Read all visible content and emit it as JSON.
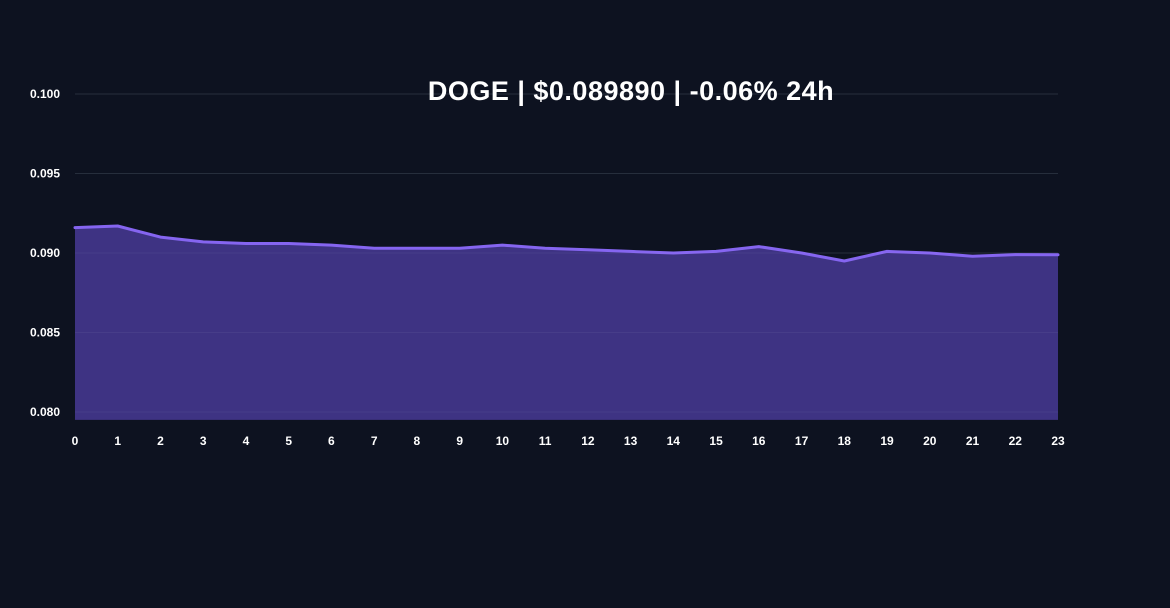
{
  "chart_data": {
    "type": "area",
    "title": "DOGE | $0.089890 | -0.06% 24h",
    "x": [
      0,
      1,
      2,
      3,
      4,
      5,
      6,
      7,
      8,
      9,
      10,
      11,
      12,
      13,
      14,
      15,
      16,
      17,
      18,
      19,
      20,
      21,
      22,
      23
    ],
    "values": [
      0.0916,
      0.0917,
      0.091,
      0.0907,
      0.0906,
      0.0906,
      0.0905,
      0.0903,
      0.0903,
      0.0903,
      0.0905,
      0.0903,
      0.0902,
      0.0901,
      0.09,
      0.0901,
      0.0904,
      0.09,
      0.0895,
      0.0901,
      0.09,
      0.0898,
      0.0899,
      0.08989
    ],
    "xlabel": "",
    "ylabel": "",
    "yticks": [
      0.1,
      0.095,
      0.09,
      0.085,
      0.08
    ],
    "ytick_labels": [
      "0.100",
      "0.095",
      "0.090",
      "0.085",
      "0.080"
    ],
    "ylim": [
      0.0795,
      0.102
    ],
    "grid": true,
    "legend": "none",
    "colors": {
      "background": "#0d1220",
      "line": "#8565f0",
      "fill": "#3e3383",
      "grid": "#1b2332",
      "grid_overlay": "rgba(255,255,255,0.05)",
      "text": "#ffffff"
    }
  }
}
